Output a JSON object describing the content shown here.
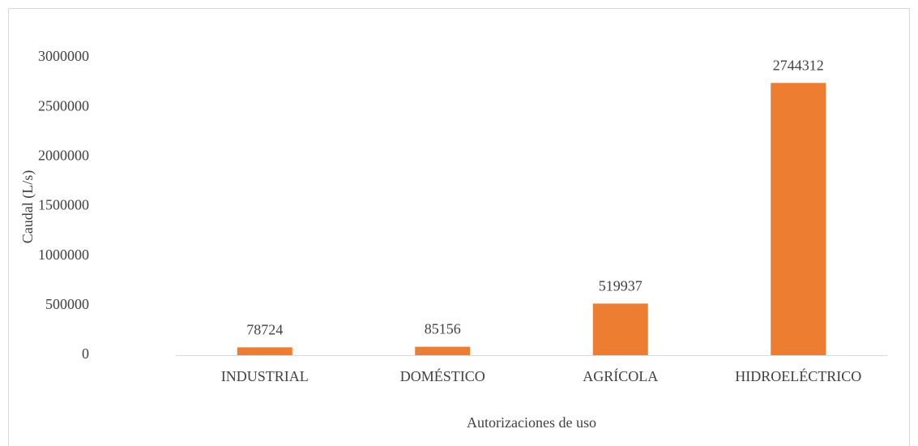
{
  "chart_data": {
    "type": "bar",
    "x_label": "Autorizaciones de uso",
    "y_label": "Caudal (L/s)",
    "categories": [
      "INDUSTRIAL",
      "DOMÉSTICO",
      "AGRÍCOLA",
      "HIDROELÉCTRICO"
    ],
    "values": [
      78724,
      85156,
      519937,
      2744312
    ],
    "color": "#ed7d31",
    "ylim": [
      0,
      3000000
    ],
    "yticks": [
      0,
      500000,
      1000000,
      1500000,
      2000000,
      2500000,
      3000000
    ],
    "grid": false,
    "data_labels": true
  }
}
